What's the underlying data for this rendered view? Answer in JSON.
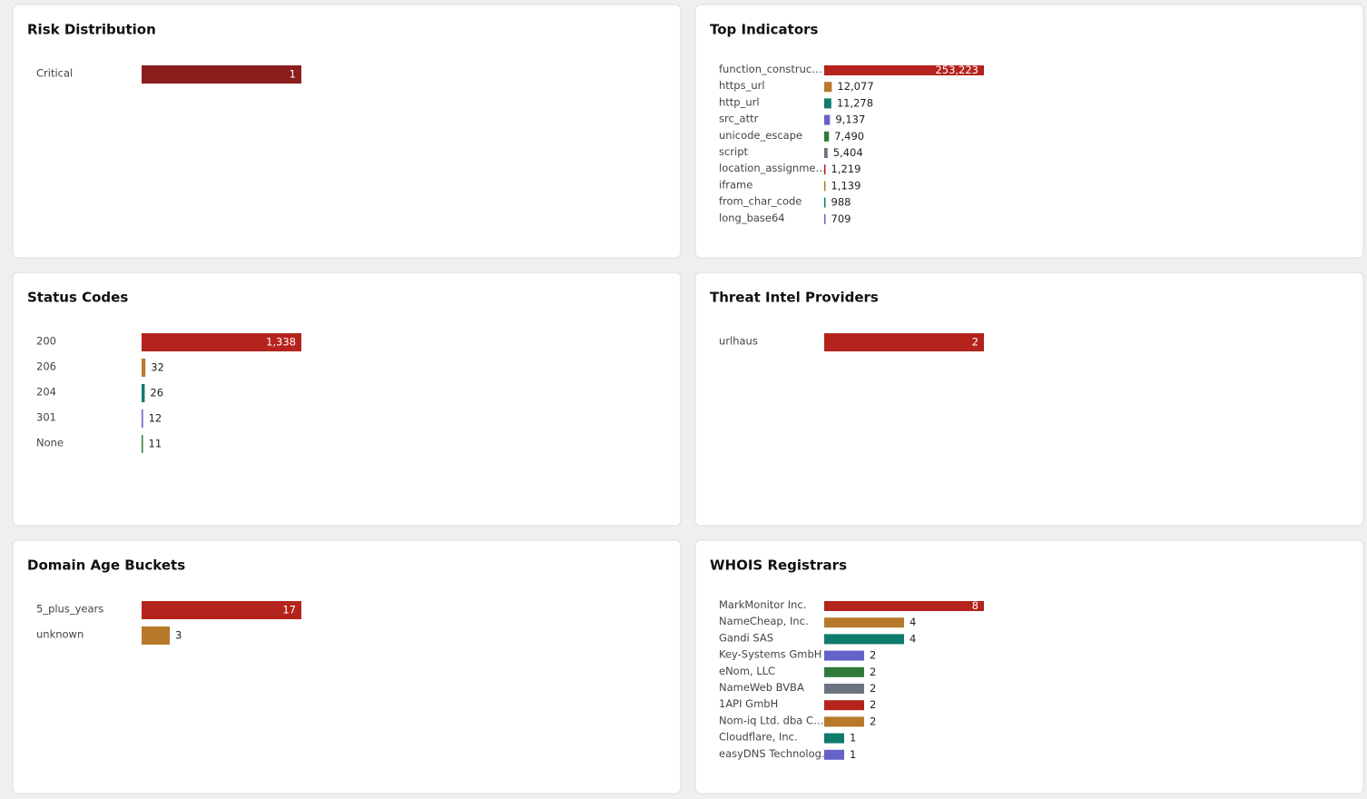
{
  "chart_data": [
    {
      "type": "bar",
      "title": "Risk Distribution",
      "categories": [
        "Critical"
      ],
      "values": [
        1
      ],
      "colors": [
        "#8b1d1d"
      ]
    },
    {
      "type": "bar",
      "title": "Top Indicators",
      "categories": [
        "function_construc…",
        "https_url",
        "http_url",
        "src_attr",
        "unicode_escape",
        "script",
        "location_assignme…",
        "iframe",
        "from_char_code",
        "long_base64"
      ],
      "values": [
        253223,
        12077,
        11278,
        9137,
        7490,
        5404,
        1219,
        1139,
        988,
        709
      ],
      "value_labels": [
        "253,223",
        "12,077",
        "11,278",
        "9,137",
        "7,490",
        "5,404",
        "1,219",
        "1,139",
        "988",
        "709"
      ],
      "colors": [
        "#b5231d",
        "#b8792a",
        "#0f7b6c",
        "#6563c9",
        "#2f7a3a",
        "#6b7280",
        "#b5231d",
        "#b8792a",
        "#0f7b6c",
        "#6563c9"
      ]
    },
    {
      "type": "bar",
      "title": "Status Codes",
      "categories": [
        "200",
        "206",
        "204",
        "301",
        "None"
      ],
      "values": [
        1338,
        32,
        26,
        12,
        11
      ],
      "value_labels": [
        "1,338",
        "32",
        "26",
        "12",
        "11"
      ],
      "colors": [
        "#b5231d",
        "#b8792a",
        "#0f7b6c",
        "#6563c9",
        "#2f7a3a"
      ]
    },
    {
      "type": "bar",
      "title": "Threat Intel Providers",
      "categories": [
        "urlhaus"
      ],
      "values": [
        2
      ],
      "colors": [
        "#b5231d"
      ]
    },
    {
      "type": "bar",
      "title": "Domain Age Buckets",
      "categories": [
        "5_plus_years",
        "unknown"
      ],
      "values": [
        17,
        3
      ],
      "colors": [
        "#b5231d",
        "#b8792a"
      ]
    },
    {
      "type": "bar",
      "title": "WHOIS Registrars",
      "categories": [
        "MarkMonitor Inc.",
        "NameCheap, Inc.",
        "Gandi SAS",
        "Key-Systems GmbH",
        "eNom, LLC",
        "NameWeb BVBA",
        "1API GmbH",
        "Nom-iq Ltd. dba C…",
        "Cloudflare, Inc.",
        "easyDNS Technolog…"
      ],
      "values": [
        8,
        4,
        4,
        2,
        2,
        2,
        2,
        2,
        1,
        1
      ],
      "colors": [
        "#b5231d",
        "#b8792a",
        "#0f7b6c",
        "#6563c9",
        "#2f7a3a",
        "#6b7280",
        "#b5231d",
        "#b8792a",
        "#0f7b6c",
        "#6563c9"
      ]
    }
  ]
}
